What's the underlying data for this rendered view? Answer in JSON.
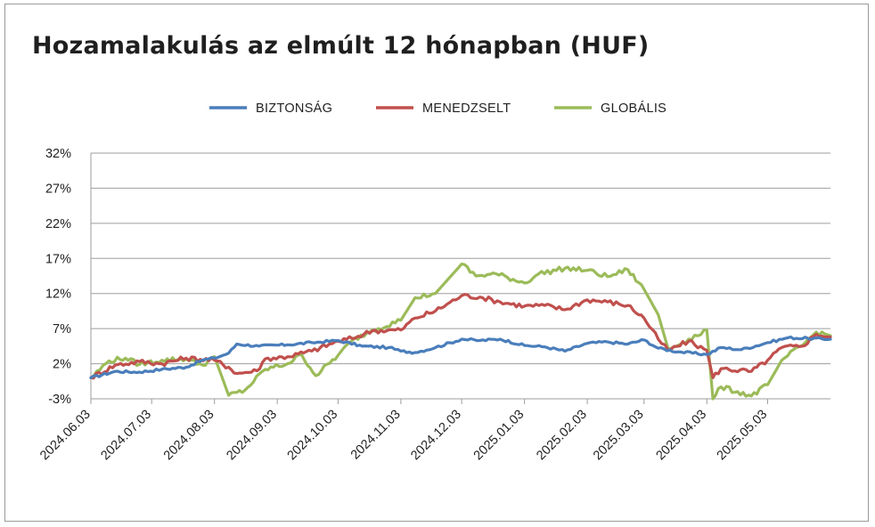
{
  "chart_data": {
    "type": "line",
    "title": "Hozamalakulás az elmúlt 12 hónapban (HUF)",
    "xlabel": "",
    "ylabel": "",
    "ylim": [
      -3,
      35
    ],
    "y_ticks": [
      "32%",
      "27%",
      "22%",
      "17%",
      "12%",
      "7%",
      "2%",
      "-3%"
    ],
    "y_tick_values": [
      32,
      27,
      22,
      17,
      12,
      7,
      2,
      -3
    ],
    "x_ticks": [
      "2024.06.03",
      "2024.07.03",
      "2024.08.03",
      "2024.09.03",
      "2024.10.03",
      "2024.11.03",
      "2024.12.03",
      "2025.01.03",
      "2025.02.03",
      "2025.03.03",
      "2025.04.03",
      "2025.05.03"
    ],
    "x_tick_dates": [
      "2024-06-03",
      "2024-07-03",
      "2024-08-03",
      "2024-09-03",
      "2024-10-03",
      "2024-11-03",
      "2024-12-03",
      "2025-01-03",
      "2025-02-03",
      "2025-03-03",
      "2025-04-03",
      "2025-05-03"
    ],
    "x_range": [
      "2024-06-03",
      "2025-06-03"
    ],
    "grid": true,
    "legend_position": "top-center",
    "series": [
      {
        "name": "BIZTONSÁG",
        "color": "#4a7ebb",
        "points": [
          [
            "2024-06-03",
            0.0
          ],
          [
            "2024-06-15",
            0.9
          ],
          [
            "2024-06-27",
            0.8
          ],
          [
            "2024-07-08",
            1.2
          ],
          [
            "2024-07-20",
            1.5
          ],
          [
            "2024-07-28",
            2.5
          ],
          [
            "2024-08-03",
            2.8
          ],
          [
            "2024-08-10",
            3.5
          ],
          [
            "2024-08-14",
            4.8
          ],
          [
            "2024-08-25",
            4.5
          ],
          [
            "2024-09-08",
            4.7
          ],
          [
            "2024-09-20",
            5.0
          ],
          [
            "2024-10-03",
            5.3
          ],
          [
            "2024-10-15",
            4.5
          ],
          [
            "2024-10-28",
            4.3
          ],
          [
            "2024-11-03",
            3.8
          ],
          [
            "2024-11-10",
            3.6
          ],
          [
            "2024-11-20",
            4.3
          ],
          [
            "2024-12-03",
            5.5
          ],
          [
            "2024-12-12",
            5.3
          ],
          [
            "2024-12-22",
            5.5
          ],
          [
            "2025-01-03",
            4.6
          ],
          [
            "2025-01-13",
            4.4
          ],
          [
            "2025-01-23",
            3.8
          ],
          [
            "2025-02-03",
            4.9
          ],
          [
            "2025-02-13",
            5.1
          ],
          [
            "2025-02-23",
            4.8
          ],
          [
            "2025-03-03",
            5.4
          ],
          [
            "2025-03-10",
            4.2
          ],
          [
            "2025-03-20",
            3.7
          ],
          [
            "2025-04-03",
            3.3
          ],
          [
            "2025-04-10",
            4.3
          ],
          [
            "2025-04-20",
            4.0
          ],
          [
            "2025-05-03",
            5.0
          ],
          [
            "2025-05-13",
            5.7
          ],
          [
            "2025-05-23",
            5.6
          ],
          [
            "2025-06-03",
            5.5
          ]
        ]
      },
      {
        "name": "MENEDZSELT",
        "color": "#c0504d",
        "points": [
          [
            "2024-06-03",
            0.0
          ],
          [
            "2024-06-15",
            1.8
          ],
          [
            "2024-06-27",
            2.3
          ],
          [
            "2024-07-08",
            2.0
          ],
          [
            "2024-07-20",
            2.8
          ],
          [
            "2024-08-03",
            2.5
          ],
          [
            "2024-08-10",
            1.5
          ],
          [
            "2024-08-14",
            0.6
          ],
          [
            "2024-08-24",
            1.0
          ],
          [
            "2024-08-28",
            2.7
          ],
          [
            "2024-09-08",
            3.0
          ],
          [
            "2024-09-20",
            3.8
          ],
          [
            "2024-10-03",
            5.2
          ],
          [
            "2024-10-10",
            5.6
          ],
          [
            "2024-10-20",
            6.7
          ],
          [
            "2024-11-03",
            6.8
          ],
          [
            "2024-11-10",
            8.5
          ],
          [
            "2024-11-20",
            9.5
          ],
          [
            "2024-12-03",
            11.7
          ],
          [
            "2024-12-12",
            11.5
          ],
          [
            "2024-12-22",
            10.8
          ],
          [
            "2025-01-03",
            10.2
          ],
          [
            "2025-01-13",
            10.3
          ],
          [
            "2025-01-23",
            9.7
          ],
          [
            "2025-02-03",
            11.1
          ],
          [
            "2025-02-13",
            10.8
          ],
          [
            "2025-02-23",
            10.3
          ],
          [
            "2025-03-03",
            8.5
          ],
          [
            "2025-03-10",
            5.5
          ],
          [
            "2025-03-15",
            3.9
          ],
          [
            "2025-03-25",
            5.2
          ],
          [
            "2025-04-03",
            3.9
          ],
          [
            "2025-04-06",
            0.0
          ],
          [
            "2025-04-10",
            1.3
          ],
          [
            "2025-04-25",
            0.9
          ],
          [
            "2025-05-03",
            2.5
          ],
          [
            "2025-05-10",
            4.3
          ],
          [
            "2025-05-20",
            4.5
          ],
          [
            "2025-05-27",
            6.2
          ],
          [
            "2025-06-03",
            5.8
          ]
        ]
      },
      {
        "name": "GLOBÁLIS",
        "color": "#9bbb59",
        "points": [
          [
            "2024-06-03",
            0.0
          ],
          [
            "2024-06-12",
            2.4
          ],
          [
            "2024-06-20",
            2.8
          ],
          [
            "2024-06-27",
            1.9
          ],
          [
            "2024-07-08",
            2.5
          ],
          [
            "2024-07-20",
            2.7
          ],
          [
            "2024-07-28",
            1.8
          ],
          [
            "2024-08-03",
            3.0
          ],
          [
            "2024-08-10",
            -2.5
          ],
          [
            "2024-08-18",
            -1.8
          ],
          [
            "2024-08-28",
            1.2
          ],
          [
            "2024-09-08",
            2.0
          ],
          [
            "2024-09-15",
            3.3
          ],
          [
            "2024-09-22",
            0.3
          ],
          [
            "2024-10-03",
            3.2
          ],
          [
            "2024-10-10",
            5.3
          ],
          [
            "2024-10-20",
            6.8
          ],
          [
            "2024-11-03",
            8.2
          ],
          [
            "2024-11-10",
            11.4
          ],
          [
            "2024-11-20",
            12.0
          ],
          [
            "2024-12-03",
            16.2
          ],
          [
            "2024-12-10",
            14.5
          ],
          [
            "2024-12-20",
            14.8
          ],
          [
            "2025-01-03",
            13.5
          ],
          [
            "2025-01-10",
            14.8
          ],
          [
            "2025-01-23",
            15.6
          ],
          [
            "2025-02-03",
            15.3
          ],
          [
            "2025-02-13",
            14.4
          ],
          [
            "2025-02-23",
            15.4
          ],
          [
            "2025-03-03",
            12.6
          ],
          [
            "2025-03-10",
            9.0
          ],
          [
            "2025-03-15",
            4.0
          ],
          [
            "2025-03-25",
            5.5
          ],
          [
            "2025-04-03",
            6.8
          ],
          [
            "2025-04-06",
            -3.0
          ],
          [
            "2025-04-10",
            -1.3
          ],
          [
            "2025-04-25",
            -2.6
          ],
          [
            "2025-05-03",
            -1.0
          ],
          [
            "2025-05-10",
            2.5
          ],
          [
            "2025-05-20",
            4.6
          ],
          [
            "2025-05-27",
            6.5
          ],
          [
            "2025-06-03",
            6.0
          ]
        ]
      }
    ]
  }
}
